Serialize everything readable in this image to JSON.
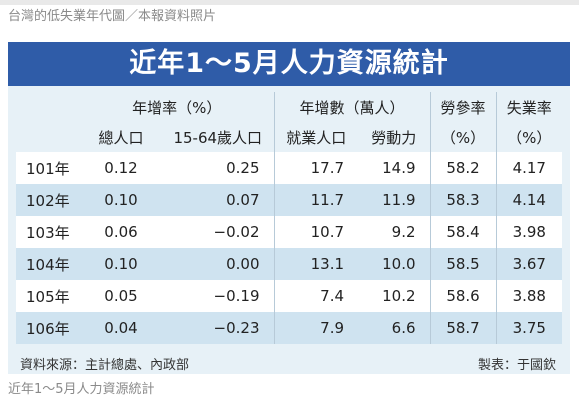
{
  "top_caption": "台灣的低失業年代圖／本報資料照片",
  "title": "近年1～5月人力資源統計",
  "headers": {
    "group1": "年增率（%）",
    "group2": "年增數（萬人）",
    "col_labor_rate_top": "勞參率",
    "col_labor_rate_unit": "（%）",
    "col_unemp_top": "失業率",
    "col_unemp_unit": "（%）",
    "sub1": "總人口",
    "sub2": "15-64歲人口",
    "sub3": "就業人口",
    "sub4": "勞動力"
  },
  "rows": [
    {
      "year": "101年",
      "total_pop": "0.12",
      "pop_15_64": "0.25",
      "employed": "17.7",
      "labor_force": "14.9",
      "participation": "58.2",
      "unemployment": "4.17"
    },
    {
      "year": "102年",
      "total_pop": "0.10",
      "pop_15_64": "0.07",
      "employed": "11.7",
      "labor_force": "11.9",
      "participation": "58.3",
      "unemployment": "4.14"
    },
    {
      "year": "103年",
      "total_pop": "0.06",
      "pop_15_64": "−0.02",
      "employed": "10.7",
      "labor_force": "9.2",
      "participation": "58.4",
      "unemployment": "3.98"
    },
    {
      "year": "104年",
      "total_pop": "0.10",
      "pop_15_64": "0.00",
      "employed": "13.1",
      "labor_force": "10.0",
      "participation": "58.5",
      "unemployment": "3.67"
    },
    {
      "year": "105年",
      "total_pop": "0.05",
      "pop_15_64": "−0.19",
      "employed": "7.4",
      "labor_force": "10.2",
      "participation": "58.6",
      "unemployment": "3.88"
    },
    {
      "year": "106年",
      "total_pop": "0.04",
      "pop_15_64": "−0.23",
      "employed": "7.9",
      "labor_force": "6.6",
      "participation": "58.7",
      "unemployment": "3.75"
    }
  ],
  "footer": {
    "source": "資料來源：主計總處、內政部",
    "maker": "製表：于國欽"
  },
  "bottom_caption": "近年1～5月人力資源統計",
  "colors": {
    "title_bg": "#2f5ca8",
    "card_bg": "#e7f1f7",
    "band_bg": "#cfe3f0"
  }
}
